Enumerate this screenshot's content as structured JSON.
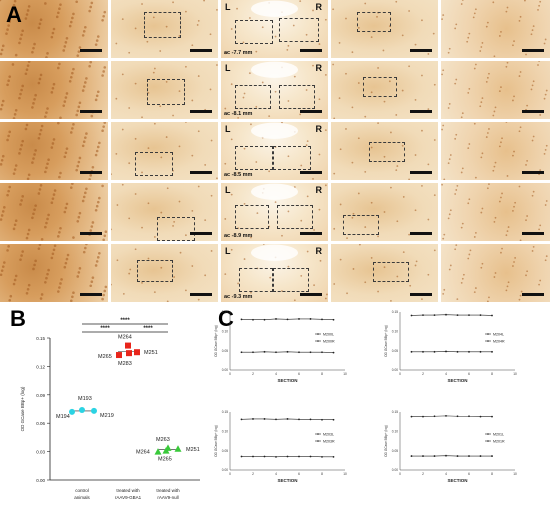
{
  "panels": {
    "a_label": "A",
    "b_label": "B",
    "c_label": "C"
  },
  "panel_a": {
    "left_label": "L",
    "right_label": "R",
    "rows": [
      {
        "ac_label": "ac -7.7 mm"
      },
      {
        "ac_label": "ac -8.1 mm"
      },
      {
        "ac_label": "ac -8.5 mm"
      },
      {
        "ac_label": "ac -8.9 mm"
      },
      {
        "ac_label": "ac -9.3 mm"
      }
    ],
    "colors": {
      "tissue_light": "#f3e2c4",
      "tissue_dark": "#c98b4a",
      "stain": "#a35a1f"
    }
  },
  "chart_data": [
    {
      "type": "scatter",
      "id": "panel-b",
      "ylabel": "OD GCase BBp+ (log)",
      "ylim": [
        0.0,
        0.15
      ],
      "yticks": [
        "0.15",
        "0.12",
        "0.09",
        "0.06",
        "0.03",
        "0.00"
      ],
      "categories": [
        "control animals",
        "treated with rAAV9-GBA1",
        "treated with rAAV9-null"
      ],
      "category_lines": [
        [
          "control",
          "animals"
        ],
        [
          "treated with",
          "rAAV9-GBA1"
        ],
        [
          "treated with",
          "rAAV9-null"
        ]
      ],
      "significance": [
        "****",
        "****",
        "****"
      ],
      "groups": [
        {
          "category": "control animals",
          "color": "#2bd3e3",
          "marker": "circle",
          "points": [
            {
              "label": "M193",
              "value": 0.074
            },
            {
              "label": "M194",
              "value": 0.072
            },
            {
              "label": "M219",
              "value": 0.073
            }
          ]
        },
        {
          "category": "treated with rAAV9-GBA1",
          "color": "#e8251b",
          "marker": "square",
          "points": [
            {
              "label": "M264",
              "value": 0.142
            },
            {
              "label": "M265",
              "value": 0.132
            },
            {
              "label": "M283",
              "value": 0.134
            },
            {
              "label": "M251",
              "value": 0.135
            }
          ]
        },
        {
          "category": "treated with rAAV9-null",
          "color": "#39c93a",
          "marker": "triangle",
          "points": [
            {
              "label": "M263",
              "value": 0.034
            },
            {
              "label": "M264",
              "value": 0.03
            },
            {
              "label": "M265",
              "value": 0.031
            },
            {
              "label": "M251",
              "value": 0.033
            }
          ]
        }
      ]
    },
    {
      "type": "line",
      "id": "panel-c-1",
      "xlabel": "SECTION",
      "ylabel": "OD GCase BBp+ (log)",
      "xlim": [
        0,
        10
      ],
      "ylim": [
        0.0,
        0.15
      ],
      "xticks": [
        "0",
        "2",
        "4",
        "6",
        "8",
        "10"
      ],
      "yticks": [
        "0.15",
        "0.10",
        "0.05",
        "0.00"
      ],
      "x": [
        1,
        2,
        3,
        4,
        5,
        6,
        7,
        8,
        9
      ],
      "series": [
        {
          "name": "M200L",
          "values": [
            0.131,
            0.13,
            0.13,
            0.132,
            0.131,
            0.132,
            0.132,
            0.131,
            0.13
          ]
        },
        {
          "name": "M200R",
          "values": [
            0.046,
            0.046,
            0.047,
            0.046,
            0.047,
            0.046,
            0.046,
            0.046,
            0.045
          ]
        }
      ]
    },
    {
      "type": "line",
      "id": "panel-c-2",
      "xlabel": "SECTION",
      "ylabel": "OD GCase BBp+ (log)",
      "xlim": [
        0,
        10
      ],
      "ylim": [
        0.0,
        0.15
      ],
      "xticks": [
        "0",
        "2",
        "4",
        "6",
        "8",
        "10"
      ],
      "yticks": [
        "0.15",
        "0.10",
        "0.05",
        "0.00"
      ],
      "x": [
        1,
        2,
        3,
        4,
        5,
        6,
        7,
        8
      ],
      "series": [
        {
          "name": "M204L",
          "values": [
            0.141,
            0.142,
            0.142,
            0.143,
            0.142,
            0.142,
            0.142,
            0.141
          ]
        },
        {
          "name": "M204R",
          "values": [
            0.047,
            0.047,
            0.047,
            0.048,
            0.047,
            0.047,
            0.047,
            0.047
          ]
        }
      ]
    },
    {
      "type": "line",
      "id": "panel-c-3",
      "xlabel": "SECTION",
      "ylabel": "OD GCase BBp+ (log)",
      "xlim": [
        0,
        10
      ],
      "ylim": [
        0.0,
        0.15
      ],
      "xticks": [
        "0",
        "2",
        "4",
        "6",
        "8",
        "10"
      ],
      "yticks": [
        "0.15",
        "0.10",
        "0.05",
        "0.00"
      ],
      "x": [
        1,
        2,
        3,
        4,
        5,
        6,
        7,
        8,
        9
      ],
      "series": [
        {
          "name": "M203L",
          "values": [
            0.131,
            0.132,
            0.132,
            0.131,
            0.132,
            0.131,
            0.131,
            0.13,
            0.13
          ]
        },
        {
          "name": "M203R",
          "values": [
            0.035,
            0.035,
            0.035,
            0.034,
            0.035,
            0.035,
            0.035,
            0.034,
            0.034
          ]
        }
      ]
    },
    {
      "type": "line",
      "id": "panel-c-4",
      "xlabel": "SECTION",
      "ylabel": "OD GCase BBp+ (log)",
      "xlim": [
        0,
        10
      ],
      "ylim": [
        0.0,
        0.15
      ],
      "xticks": [
        "0",
        "2",
        "4",
        "6",
        "8",
        "10"
      ],
      "yticks": [
        "0.15",
        "0.10",
        "0.05",
        "0.00"
      ],
      "x": [
        1,
        2,
        3,
        4,
        5,
        6,
        7,
        8
      ],
      "series": [
        {
          "name": "M201L",
          "values": [
            0.138,
            0.138,
            0.139,
            0.14,
            0.139,
            0.139,
            0.138,
            0.138
          ]
        },
        {
          "name": "M201R",
          "values": [
            0.036,
            0.036,
            0.036,
            0.037,
            0.036,
            0.036,
            0.036,
            0.036
          ]
        }
      ]
    }
  ]
}
